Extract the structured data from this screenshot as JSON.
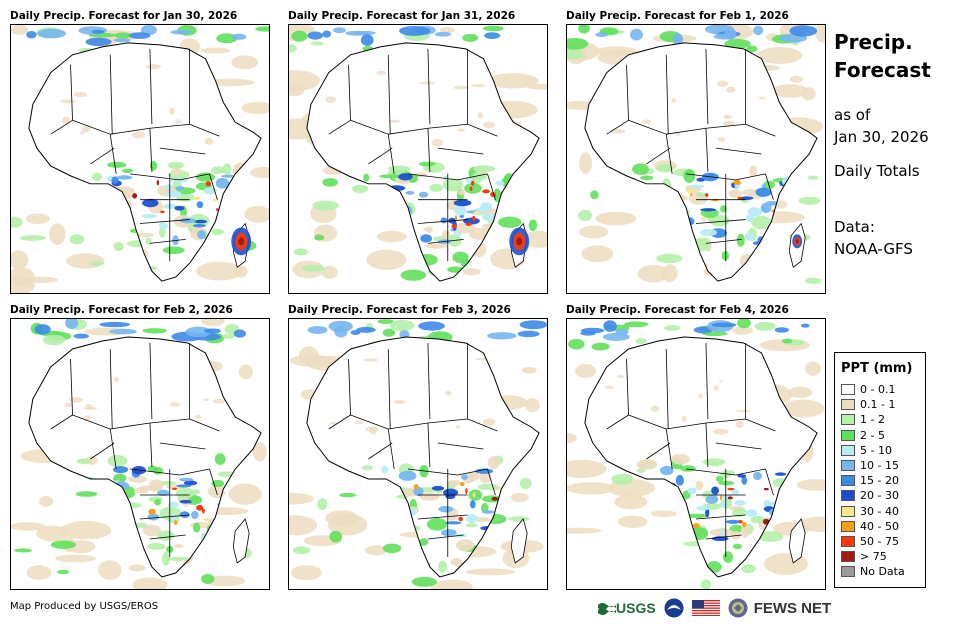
{
  "panels": [
    {
      "title": "Daily Precip. Forecast for Jan 30, 2026",
      "intensity": 1.0,
      "storm_east": 1.0
    },
    {
      "title": "Daily Precip. Forecast for Jan 31, 2026",
      "intensity": 1.1,
      "storm_east": 1.0
    },
    {
      "title": "Daily Precip. Forecast for Feb 1, 2026",
      "intensity": 1.0,
      "storm_east": 0.5
    },
    {
      "title": "Daily Precip. Forecast for Feb 2, 2026",
      "intensity": 0.8,
      "storm_east": 0.3
    },
    {
      "title": "Daily Precip. Forecast for Feb 3, 2026",
      "intensity": 0.7,
      "storm_east": 0.2
    },
    {
      "title": "Daily Precip. Forecast for Feb 4, 2026",
      "intensity": 1.0,
      "storm_east": 0.4
    }
  ],
  "info": {
    "title_line1": "Precip.",
    "title_line2": "Forecast",
    "asof_line1": "as of",
    "asof_line2": "Jan 30, 2026",
    "totals": "Daily Totals",
    "data_line1": "Data:",
    "data_line2": "NOAA-GFS"
  },
  "legend": {
    "title": "PPT (mm)",
    "items": [
      {
        "label": "0 - 0.1",
        "color": "#ffffff"
      },
      {
        "label": "0.1 - 1",
        "color": "#eddcc0"
      },
      {
        "label": "1 - 2",
        "color": "#b4f0a8"
      },
      {
        "label": "2 - 5",
        "color": "#5fe05a"
      },
      {
        "label": "5 - 10",
        "color": "#b8ecf6"
      },
      {
        "label": "10 - 15",
        "color": "#76b6f0"
      },
      {
        "label": "15 - 20",
        "color": "#3c8ae8"
      },
      {
        "label": "20 - 30",
        "color": "#1c4fd0"
      },
      {
        "label": "30 - 40",
        "color": "#fce68a"
      },
      {
        "label": "40 - 50",
        "color": "#f7a21a"
      },
      {
        "label": "50 - 75",
        "color": "#f53b0c"
      },
      {
        "label": "> 75",
        "color": "#a21a14"
      },
      {
        "label": "No Data",
        "color": "#999999"
      }
    ]
  },
  "credit": "Map Produced by USGS/EROS",
  "logos": {
    "usgs": "USGS",
    "fews": "FEWS NET"
  }
}
